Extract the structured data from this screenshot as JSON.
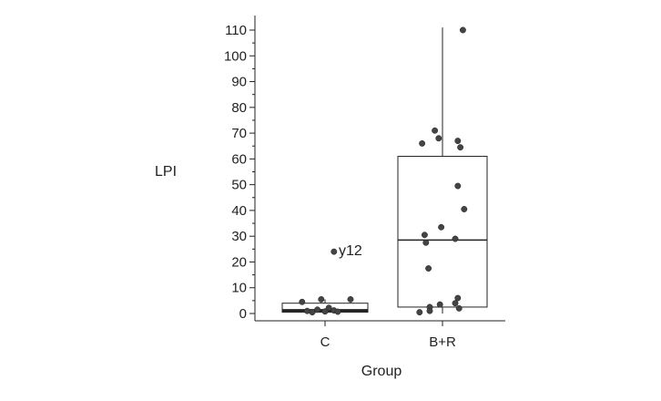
{
  "chart_data": {
    "type": "boxplot",
    "title": "",
    "xlabel": "Group",
    "ylabel": "LPI",
    "ylim": [
      -5,
      112
    ],
    "yticks": [
      0,
      10,
      20,
      30,
      40,
      50,
      60,
      70,
      80,
      90,
      100,
      110
    ],
    "grid": false,
    "groups": [
      {
        "name": "C",
        "box": {
          "q1": 0.5,
          "median": 1.2,
          "q3": 4.0,
          "whisker_low": 0,
          "whisker_high": 5.5
        },
        "points": [
          {
            "x": -0.18,
            "y": 4.5
          },
          {
            "x": -0.14,
            "y": 1.0
          },
          {
            "x": -0.1,
            "y": 0.5
          },
          {
            "x": -0.06,
            "y": 1.5
          },
          {
            "x": -0.03,
            "y": 5.5
          },
          {
            "x": 0.0,
            "y": 0.8
          },
          {
            "x": 0.03,
            "y": 2.2
          },
          {
            "x": 0.07,
            "y": 1.2
          },
          {
            "x": 0.1,
            "y": 0.7
          },
          {
            "x": 0.2,
            "y": 5.5
          },
          {
            "x": 0.07,
            "y": 24.0
          }
        ],
        "annotations": [
          {
            "text": "y12",
            "y": 24.0
          }
        ]
      },
      {
        "name": "B+R",
        "box": {
          "q1": 2.5,
          "median": 28.5,
          "q3": 61.0,
          "whisker_low": 0,
          "whisker_high": 111
        },
        "points": [
          {
            "x": 0.16,
            "y": 110
          },
          {
            "x": -0.06,
            "y": 71
          },
          {
            "x": -0.03,
            "y": 68
          },
          {
            "x": -0.16,
            "y": 66
          },
          {
            "x": 0.12,
            "y": 67
          },
          {
            "x": 0.14,
            "y": 64.5
          },
          {
            "x": 0.12,
            "y": 49.5
          },
          {
            "x": 0.17,
            "y": 40.5
          },
          {
            "x": -0.01,
            "y": 33.5
          },
          {
            "x": -0.14,
            "y": 30.5
          },
          {
            "x": -0.13,
            "y": 27.5
          },
          {
            "x": 0.1,
            "y": 29.0
          },
          {
            "x": -0.11,
            "y": 17.5
          },
          {
            "x": 0.12,
            "y": 6.0
          },
          {
            "x": 0.1,
            "y": 4.0
          },
          {
            "x": -0.02,
            "y": 3.5
          },
          {
            "x": -0.1,
            "y": 2.5
          },
          {
            "x": 0.13,
            "y": 2.0
          },
          {
            "x": -0.18,
            "y": 0.5
          },
          {
            "x": -0.1,
            "y": 1.0
          }
        ],
        "annotations": []
      }
    ]
  }
}
